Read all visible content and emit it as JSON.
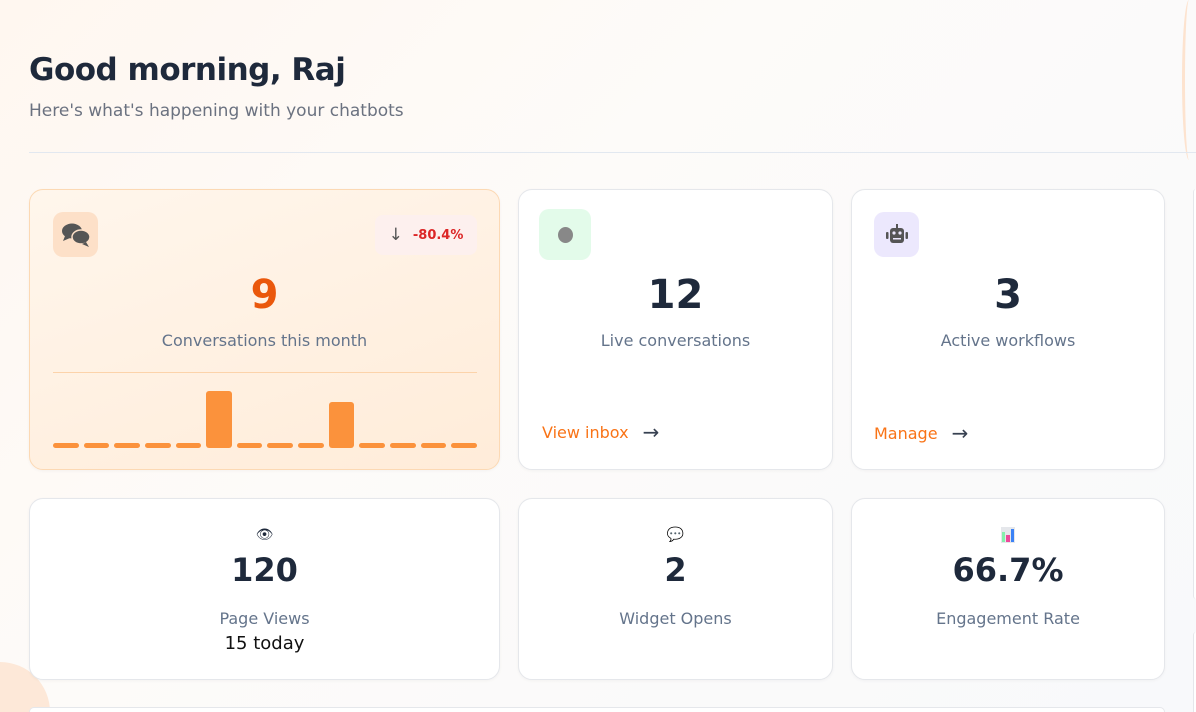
{
  "header": {
    "greeting": "Good morning, Raj",
    "subtitle": "Here's what's happening with your chatbots"
  },
  "conversations": {
    "icon": "chat-bubbles-icon",
    "value": "9",
    "label": "Conversations this month",
    "change": "-80.4%",
    "change_icon": "arrow-down-icon",
    "accent": "#ea580c",
    "bar_color": "#fb923c",
    "bars": [
      0,
      0,
      0,
      0,
      0,
      5,
      0,
      0,
      0,
      4,
      0,
      0,
      0,
      0
    ]
  },
  "live": {
    "icon": "status-dot-icon",
    "value": "12",
    "label": "Live conversations",
    "link": "View inbox"
  },
  "workflows": {
    "icon": "robot-icon",
    "value": "3",
    "label": "Active workflows",
    "link": "Manage"
  },
  "page_views": {
    "icon": "eye-icon",
    "value": "120",
    "label": "Page Views",
    "detail": "15 today"
  },
  "widget_opens": {
    "icon": "speech-balloon-icon",
    "value": "2",
    "label": "Widget Opens"
  },
  "engagement": {
    "icon": "bar-chart-icon",
    "value": "66.7%",
    "label": "Engagement Rate"
  }
}
